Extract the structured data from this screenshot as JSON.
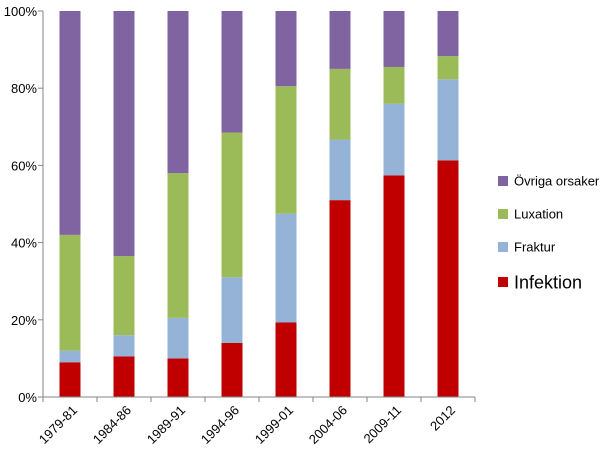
{
  "chart_data": {
    "type": "bar",
    "stacked": "percent",
    "categories": [
      "1979-81",
      "1984-86",
      "1989-91",
      "1994-96",
      "1999-01",
      "2004-06",
      "2009-11",
      "2012"
    ],
    "series": [
      {
        "name": "Infektion",
        "color": "#C00000",
        "values": [
          9,
          10.5,
          10,
          14,
          19.3,
          51,
          57.4,
          61.3
        ]
      },
      {
        "name": "Fraktur",
        "color": "#95B3D7",
        "values": [
          3,
          5.5,
          10.5,
          17,
          28.2,
          15.7,
          18.6,
          21
        ]
      },
      {
        "name": "Luxation",
        "color": "#9BBB59",
        "values": [
          30,
          20.5,
          37.5,
          37.5,
          33,
          18.3,
          9.5,
          6
        ]
      },
      {
        "name": "Övriga orsaker",
        "color": "#8064A2",
        "values": [
          58,
          63.5,
          42,
          31.5,
          19.5,
          15,
          14.5,
          11.7
        ]
      }
    ],
    "legend_order": [
      "Övriga orsaker",
      "Luxation",
      "Fraktur",
      "Infektion"
    ],
    "legend_position": "right",
    "y_ticks": [
      "0%",
      "20%",
      "40%",
      "60%",
      "80%",
      "100%"
    ],
    "ylim": [
      0,
      100
    ],
    "grid": false,
    "title": "",
    "xlabel": "",
    "ylabel": ""
  }
}
